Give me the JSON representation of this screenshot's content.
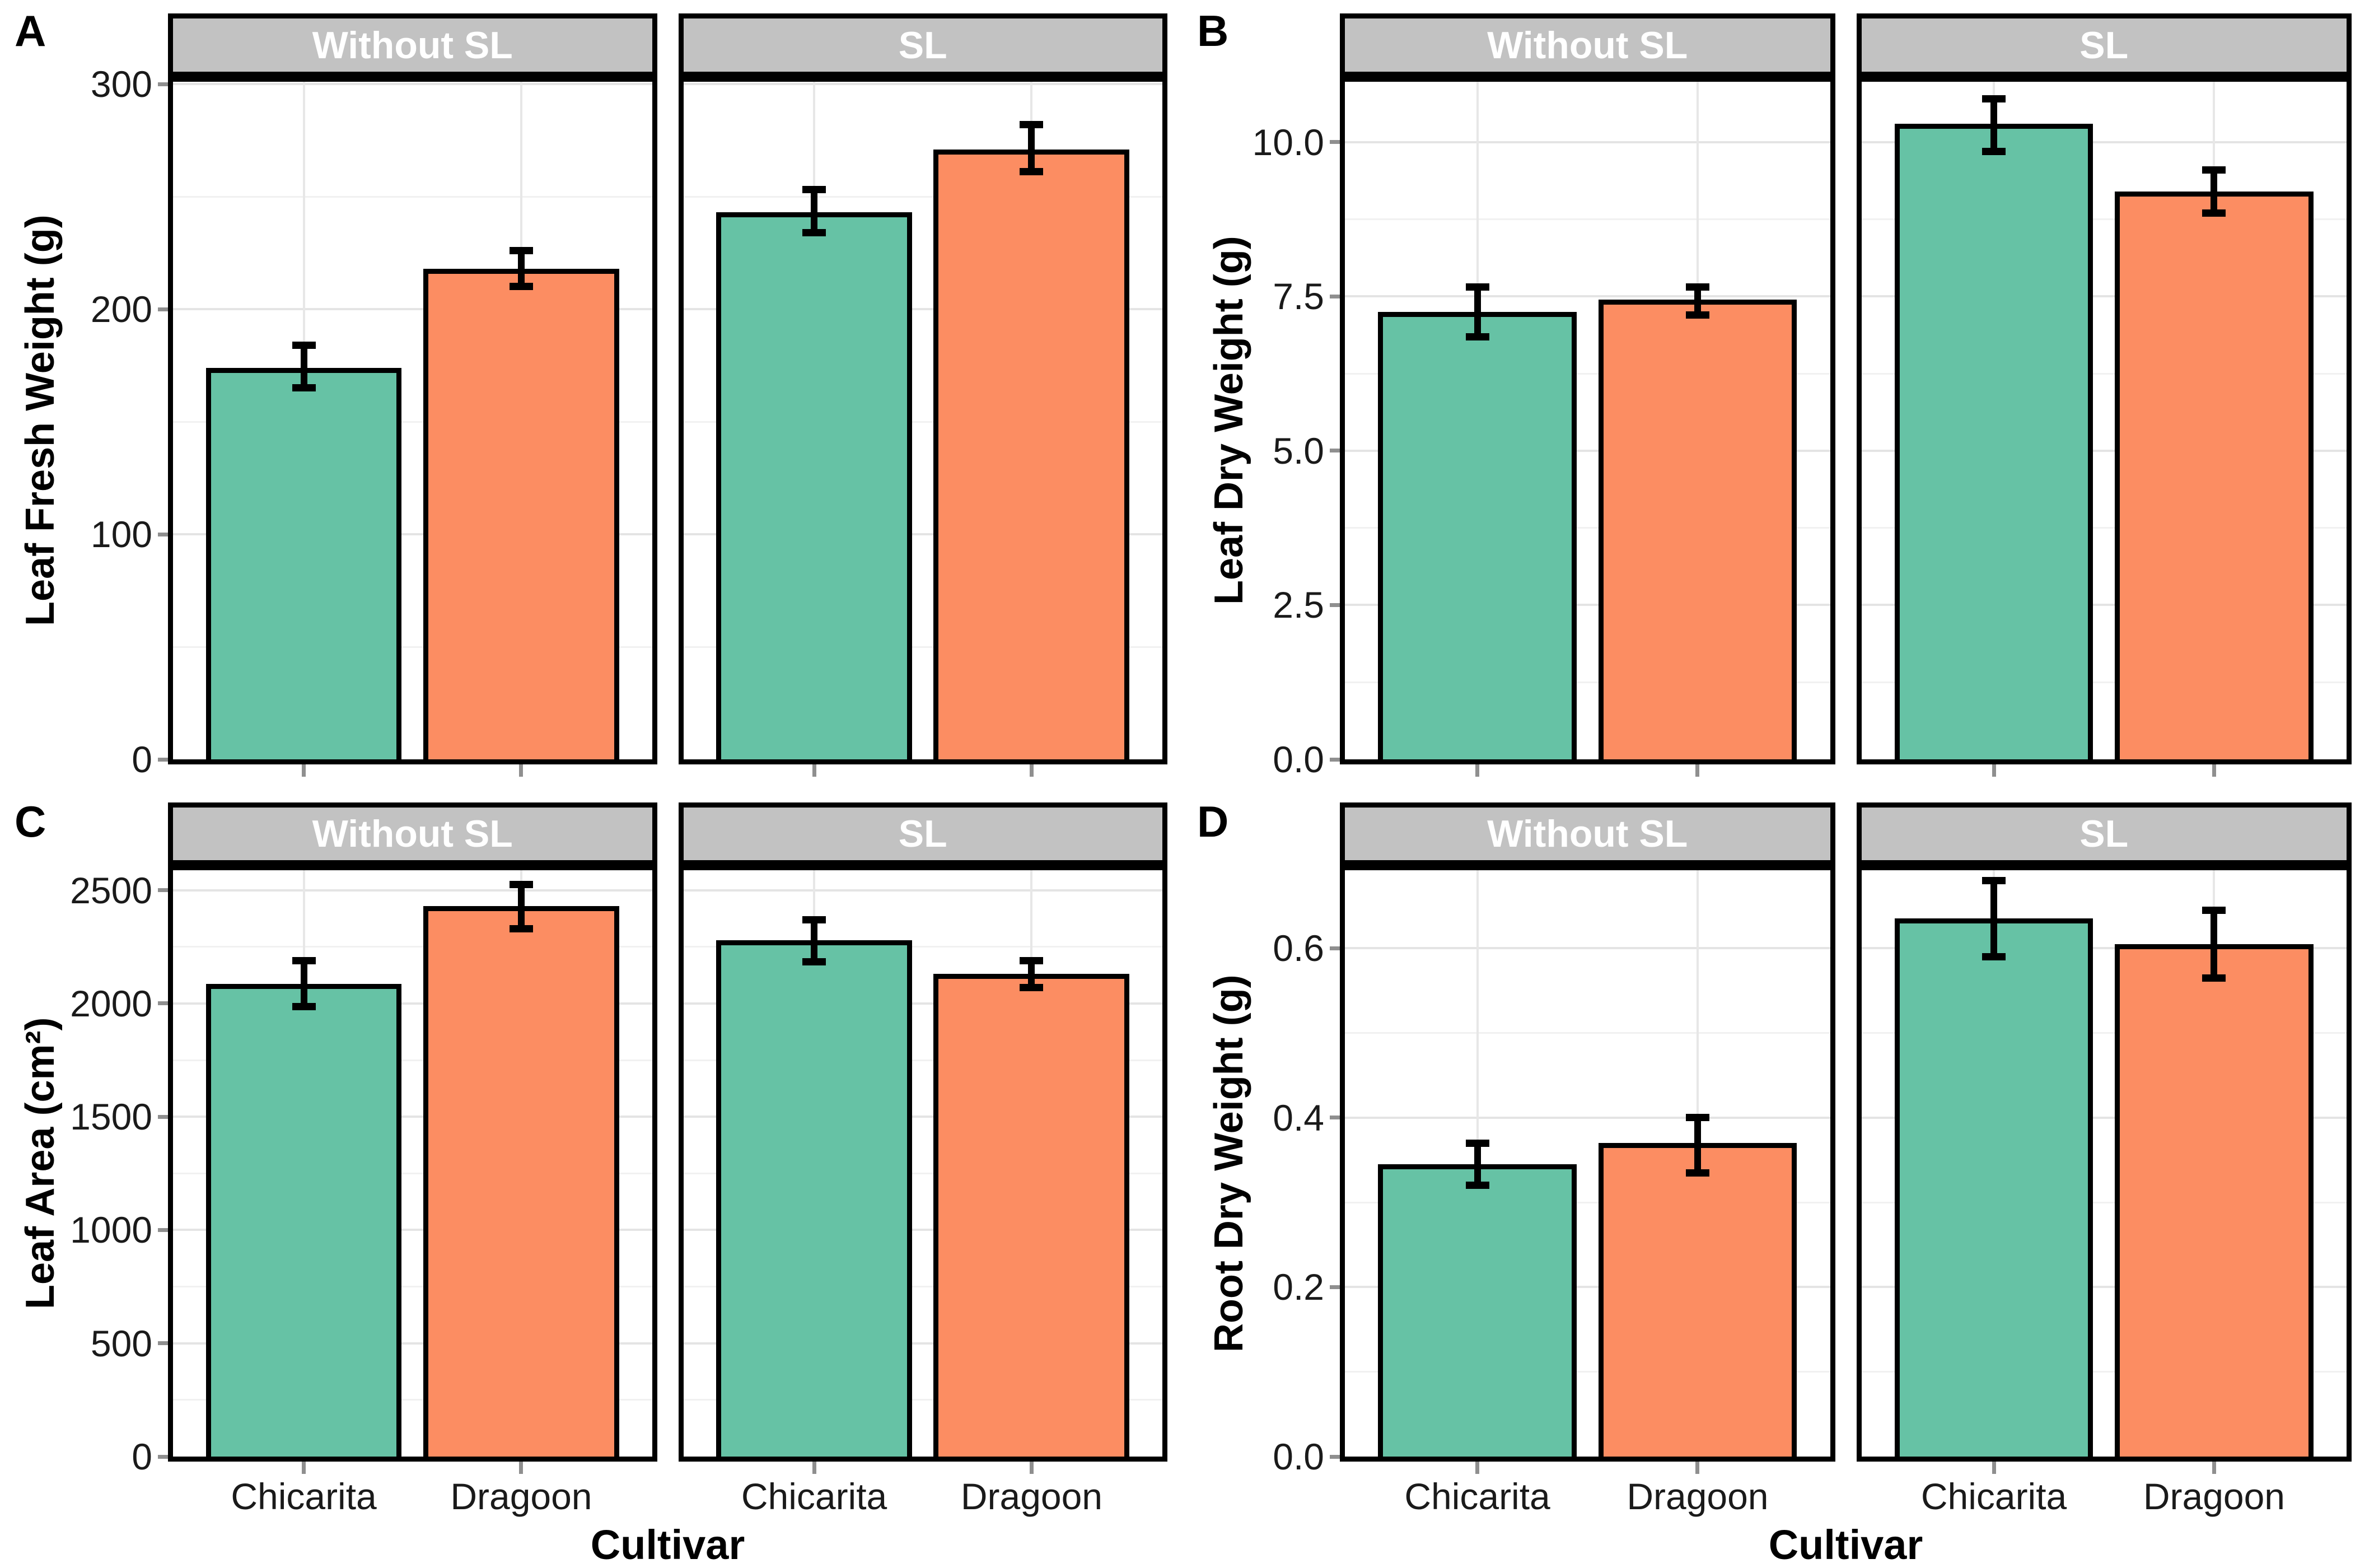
{
  "figure": {
    "background": "#FFFFFF",
    "facet_labels": [
      "Without SL",
      "SL"
    ],
    "categories": [
      "Chicarita",
      "Dragoon"
    ],
    "cultivar_axis_title": "Cultivar",
    "colors": {
      "chicarita_bar": "#66C2A5",
      "dragoon_bar": "#FC8D62",
      "bar_border": "#000000",
      "error_bar": "#000000",
      "strip_fill": "#C2C2C2",
      "strip_text": "#FFFFFF",
      "panel_border": "#000000",
      "grid_major": "#E4E4E4",
      "grid_minor": "#F1F1F1",
      "grid_vertical": "#E7E7E7",
      "tick_mark": "#8F8F8F",
      "tick_text": "#1A1A1A"
    }
  },
  "chart_data": [
    {
      "type": "bar",
      "panel_letter": "A",
      "ylabel": "Leaf Fresh Weight (g)",
      "xlabel": "",
      "facet_titles": [
        "Without SL",
        "SL"
      ],
      "categories": [
        "Chicarita",
        "Dragoon"
      ],
      "series": [
        {
          "facet": "Without SL",
          "values": [
            174,
            218
          ],
          "err_low": [
            165,
            210
          ],
          "err_high": [
            184,
            226
          ]
        },
        {
          "facet": "SL",
          "values": [
            243,
            271
          ],
          "err_low": [
            234,
            261
          ],
          "err_high": [
            253,
            282
          ]
        }
      ],
      "ylim": [
        0,
        301
      ],
      "yticks": [
        0,
        100,
        200,
        300
      ],
      "ytick_labels": [
        "0",
        "100",
        "200",
        "300"
      ],
      "minor_gridlines": [
        50,
        150,
        250
      ],
      "bar_colors": [
        "#66C2A5",
        "#FC8D62"
      ],
      "show_x_tick_labels": false,
      "grid": true,
      "legend": "none"
    },
    {
      "type": "bar",
      "panel_letter": "B",
      "ylabel": "Leaf Dry Weight (g)",
      "xlabel": "",
      "facet_titles": [
        "Without SL",
        "SL"
      ],
      "categories": [
        "Chicarita",
        "Dragoon"
      ],
      "series": [
        {
          "facet": "Without SL",
          "values": [
            7.25,
            7.45
          ],
          "err_low": [
            6.85,
            7.2
          ],
          "err_high": [
            7.65,
            7.65
          ]
        },
        {
          "facet": "SL",
          "values": [
            10.3,
            9.2
          ],
          "err_low": [
            9.85,
            8.85
          ],
          "err_high": [
            10.7,
            9.55
          ]
        }
      ],
      "ylim": [
        0,
        10.98
      ],
      "yticks": [
        0,
        2.5,
        5,
        7.5,
        10
      ],
      "ytick_labels": [
        "0.0",
        "2.5",
        "5.0",
        "7.5",
        "10.0"
      ],
      "minor_gridlines": [
        1.25,
        3.75,
        6.25,
        8.75
      ],
      "bar_colors": [
        "#66C2A5",
        "#FC8D62"
      ],
      "show_x_tick_labels": false,
      "grid": true,
      "legend": "none"
    },
    {
      "type": "bar",
      "panel_letter": "C",
      "ylabel": "Leaf Area (cm²)",
      "xlabel": "Cultivar",
      "facet_titles": [
        "Without SL",
        "SL"
      ],
      "categories": [
        "Chicarita",
        "Dragoon"
      ],
      "series": [
        {
          "facet": "Without SL",
          "values": [
            2085,
            2430
          ],
          "err_low": [
            1985,
            2330
          ],
          "err_high": [
            2190,
            2525
          ]
        },
        {
          "facet": "SL",
          "values": [
            2280,
            2130
          ],
          "err_low": [
            2185,
            2070
          ],
          "err_high": [
            2370,
            2190
          ]
        }
      ],
      "ylim": [
        0,
        2588
      ],
      "yticks": [
        0,
        500,
        1000,
        1500,
        2000,
        2500
      ],
      "ytick_labels": [
        "0",
        "500",
        "1000",
        "1500",
        "2000",
        "2500"
      ],
      "minor_gridlines": [
        250,
        750,
        1250,
        1750,
        2250
      ],
      "bar_colors": [
        "#66C2A5",
        "#FC8D62"
      ],
      "show_x_tick_labels": true,
      "grid": true,
      "legend": "none"
    },
    {
      "type": "bar",
      "panel_letter": "D",
      "ylabel": "Root Dry Weight (g)",
      "xlabel": "Cultivar",
      "facet_titles": [
        "Without SL",
        "SL"
      ],
      "categories": [
        "Chicarita",
        "Dragoon"
      ],
      "series": [
        {
          "facet": "Without SL",
          "values": [
            0.345,
            0.37
          ],
          "err_low": [
            0.32,
            0.335
          ],
          "err_high": [
            0.37,
            0.4
          ]
        },
        {
          "facet": "SL",
          "values": [
            0.635,
            0.605
          ],
          "err_low": [
            0.59,
            0.565
          ],
          "err_high": [
            0.68,
            0.645
          ]
        }
      ],
      "ylim": [
        0,
        0.692
      ],
      "yticks": [
        0,
        0.2,
        0.4,
        0.6
      ],
      "ytick_labels": [
        "0.0",
        "0.2",
        "0.4",
        "0.6"
      ],
      "minor_gridlines": [
        0.1,
        0.3,
        0.5
      ],
      "bar_colors": [
        "#66C2A5",
        "#FC8D62"
      ],
      "show_x_tick_labels": true,
      "grid": true,
      "legend": "none"
    }
  ]
}
